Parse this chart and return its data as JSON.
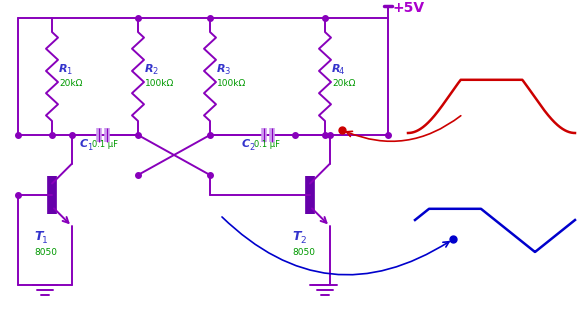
{
  "bg_color": "#ffffff",
  "cc": "#8800bb",
  "blue_label": "#3333cc",
  "green_label": "#009900",
  "purple_label": "#aa00cc",
  "red_signal": "#cc0000",
  "blue_signal": "#0000cc",
  "transistor_fill": "#6600aa",
  "cap_fill": "#cc99ee",
  "vcc_label": "+5V",
  "r1_label": "R",
  "r1_sub": "1",
  "r1_val": "20kΩ",
  "r2_label": "R",
  "r2_sub": "2",
  "r2_val": "100kΩ",
  "r3_label": "R",
  "r3_sub": "3",
  "r3_val": "100kΩ",
  "r4_label": "R",
  "r4_sub": "4",
  "r4_val": "20kΩ",
  "c1_label": "C",
  "c1_sub": "1",
  "c1_val": "0.1 μF",
  "c2_label": "C",
  "c2_sub": "2",
  "c2_val": "0.1 μF",
  "t1_label": "T",
  "t1_sub": "1",
  "t1_val": "8050",
  "t2_label": "T",
  "t2_sub": "2",
  "t2_val": "8050"
}
